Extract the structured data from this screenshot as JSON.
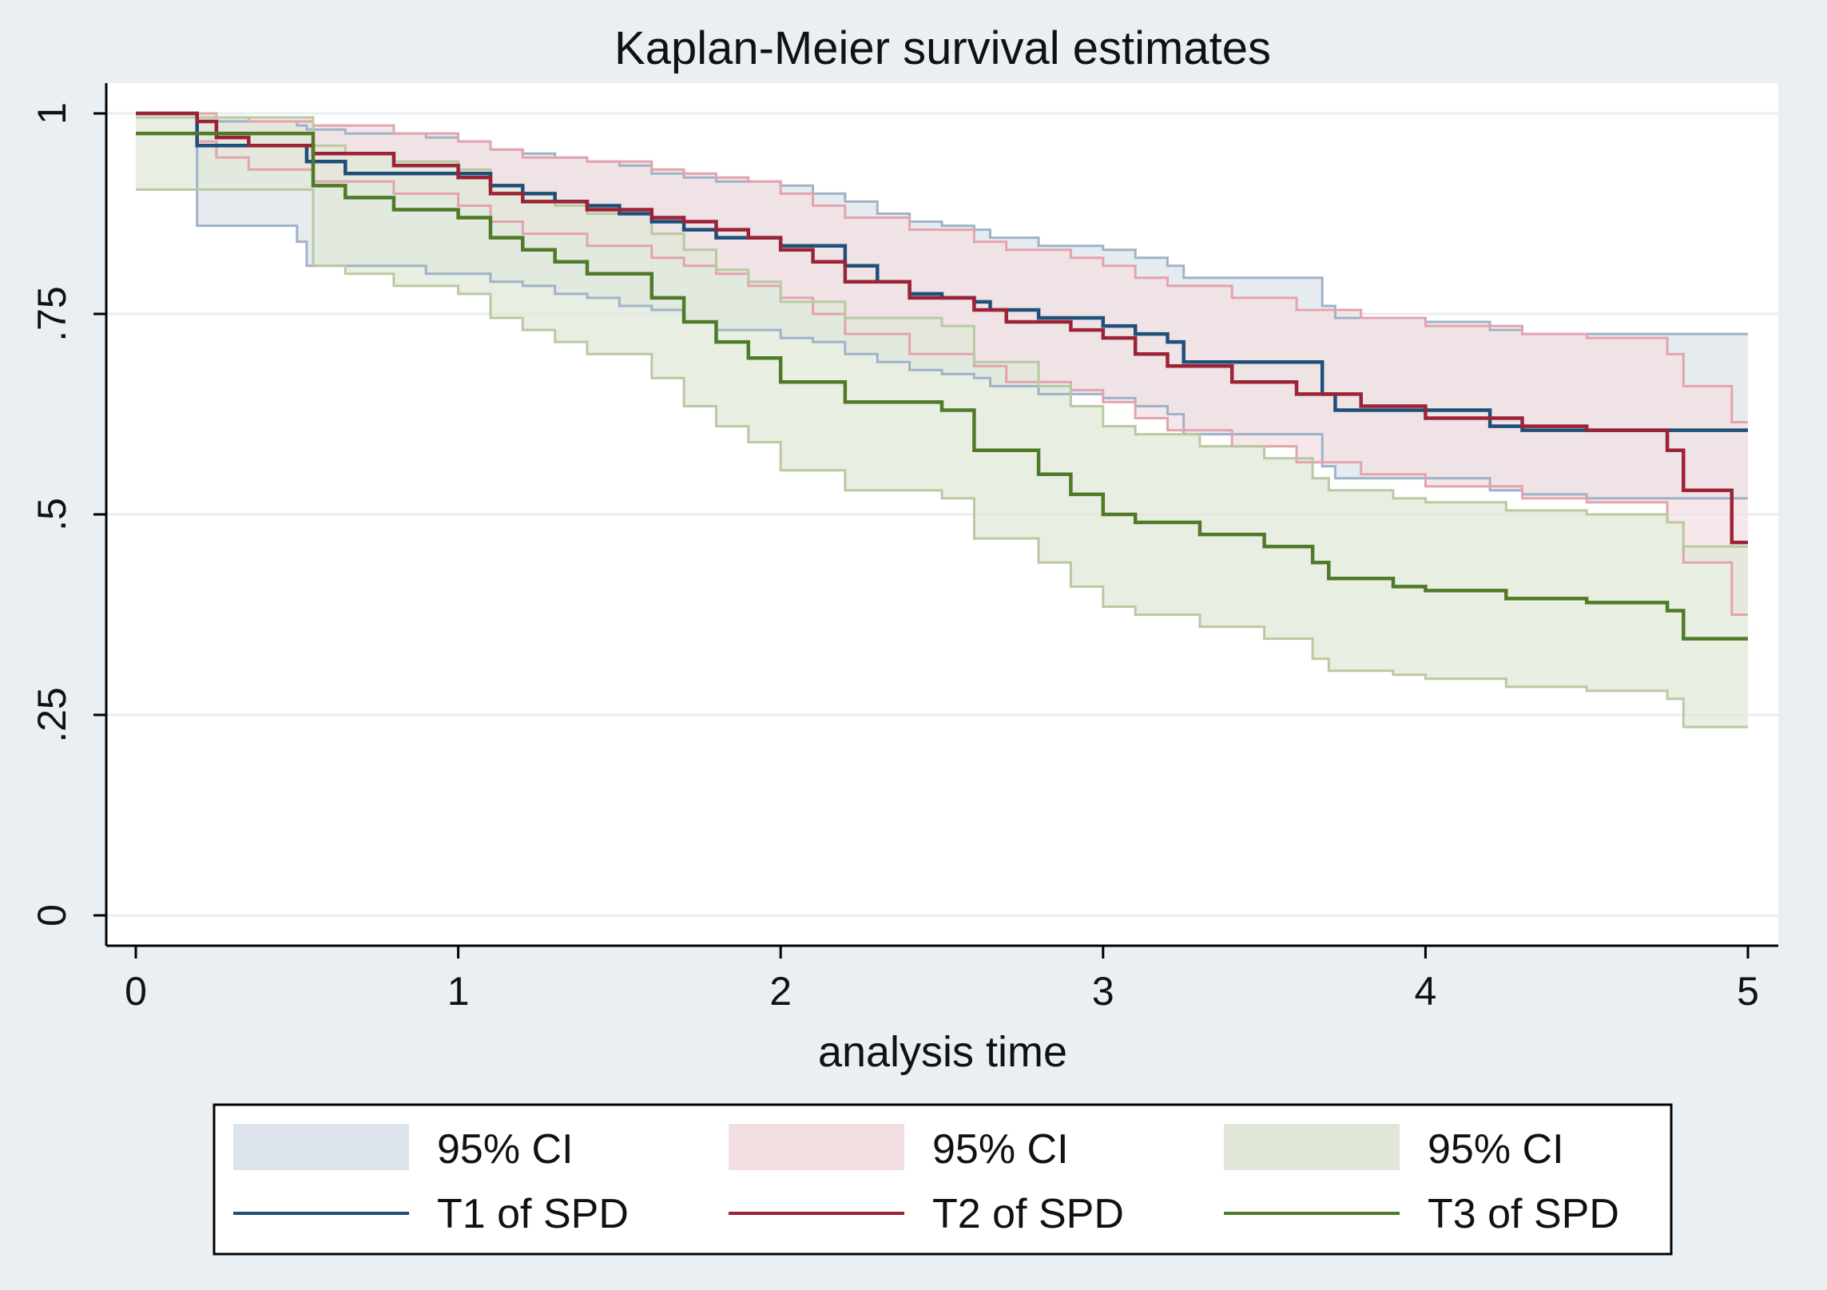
{
  "chart_data": {
    "type": "line",
    "title": "Kaplan-Meier survival estimates",
    "xlabel": "analysis time",
    "ylabel": "",
    "xlim": [
      0,
      5
    ],
    "ylim": [
      0,
      1
    ],
    "xticks": [
      0,
      1,
      2,
      3,
      4,
      5
    ],
    "xtick_labels": [
      "0",
      "1",
      "2",
      "3",
      "4",
      "5"
    ],
    "yticks": [
      0,
      0.25,
      0.5,
      0.75,
      1
    ],
    "ytick_labels": [
      "0",
      ".25",
      ".5",
      ".75",
      "1"
    ],
    "grid": true,
    "legend_position": "bottom",
    "series": [
      {
        "name": "T1 of SPD",
        "ci_label": "95% CI",
        "line_color": "#1f4e79",
        "ci_line_color": "#9fb2c8",
        "ci_fill_color": "#dde3ea",
        "x": [
          0,
          0.19,
          0.19,
          0.29,
          0.5,
          0.53,
          0.65,
          0.9,
          1.0,
          1.1,
          1.2,
          1.3,
          1.4,
          1.5,
          1.6,
          1.7,
          1.8,
          2.0,
          2.1,
          2.2,
          2.3,
          2.4,
          2.5,
          2.6,
          2.65,
          2.8,
          3.0,
          3.1,
          3.2,
          3.25,
          3.5,
          3.68,
          3.72,
          4.0,
          4.2,
          4.3,
          4.5,
          5.0
        ],
        "values": [
          1.0,
          1.0,
          0.96,
          0.96,
          0.96,
          0.94,
          0.925,
          0.925,
          0.925,
          0.91,
          0.9,
          0.89,
          0.885,
          0.875,
          0.865,
          0.855,
          0.845,
          0.835,
          0.835,
          0.81,
          0.79,
          0.775,
          0.77,
          0.765,
          0.755,
          0.745,
          0.735,
          0.725,
          0.715,
          0.69,
          0.69,
          0.65,
          0.63,
          0.63,
          0.61,
          0.605,
          0.605,
          0.605
        ],
        "ci_upper": [
          1.0,
          1.0,
          0.99,
          0.99,
          0.985,
          0.98,
          0.975,
          0.97,
          0.965,
          0.955,
          0.95,
          0.945,
          0.94,
          0.935,
          0.925,
          0.92,
          0.915,
          0.91,
          0.9,
          0.89,
          0.875,
          0.865,
          0.86,
          0.855,
          0.845,
          0.835,
          0.83,
          0.82,
          0.81,
          0.795,
          0.795,
          0.76,
          0.745,
          0.74,
          0.73,
          0.725,
          0.725,
          0.725
        ],
        "ci_lower": [
          1.0,
          1.0,
          0.86,
          0.86,
          0.84,
          0.81,
          0.81,
          0.8,
          0.8,
          0.79,
          0.785,
          0.775,
          0.77,
          0.76,
          0.755,
          0.74,
          0.73,
          0.72,
          0.715,
          0.7,
          0.69,
          0.68,
          0.675,
          0.67,
          0.66,
          0.65,
          0.645,
          0.635,
          0.625,
          0.6,
          0.6,
          0.56,
          0.545,
          0.545,
          0.53,
          0.525,
          0.52,
          0.52
        ]
      },
      {
        "name": "T2 of SPD",
        "ci_label": "95% CI",
        "line_color": "#9b2335",
        "ci_line_color": "#e4a3ad",
        "ci_fill_color": "#f3dfe2",
        "x": [
          0,
          0.19,
          0.25,
          0.35,
          0.55,
          0.8,
          1.0,
          1.1,
          1.2,
          1.4,
          1.6,
          1.7,
          1.8,
          1.9,
          2.0,
          2.1,
          2.2,
          2.4,
          2.6,
          2.7,
          2.9,
          3.0,
          3.1,
          3.2,
          3.4,
          3.6,
          3.8,
          4.0,
          4.3,
          4.5,
          4.75,
          4.8,
          4.95,
          5.0
        ],
        "values": [
          1.0,
          0.99,
          0.97,
          0.96,
          0.95,
          0.935,
          0.92,
          0.9,
          0.89,
          0.88,
          0.87,
          0.865,
          0.855,
          0.845,
          0.83,
          0.815,
          0.79,
          0.77,
          0.755,
          0.74,
          0.73,
          0.72,
          0.7,
          0.685,
          0.665,
          0.65,
          0.635,
          0.62,
          0.61,
          0.605,
          0.58,
          0.53,
          0.465,
          0.465
        ],
        "ci_upper": [
          1.0,
          1.0,
          0.995,
          0.99,
          0.985,
          0.975,
          0.965,
          0.955,
          0.945,
          0.94,
          0.93,
          0.925,
          0.92,
          0.915,
          0.9,
          0.885,
          0.87,
          0.855,
          0.84,
          0.83,
          0.82,
          0.81,
          0.795,
          0.785,
          0.77,
          0.755,
          0.745,
          0.735,
          0.725,
          0.72,
          0.7,
          0.66,
          0.615,
          0.615
        ],
        "ci_lower": [
          1.0,
          0.965,
          0.945,
          0.93,
          0.915,
          0.9,
          0.885,
          0.865,
          0.85,
          0.835,
          0.82,
          0.81,
          0.8,
          0.785,
          0.77,
          0.75,
          0.725,
          0.7,
          0.685,
          0.665,
          0.655,
          0.64,
          0.62,
          0.605,
          0.585,
          0.565,
          0.55,
          0.535,
          0.52,
          0.515,
          0.49,
          0.44,
          0.375,
          0.375
        ]
      },
      {
        "name": "T3 of SPD",
        "ci_label": "95% CI",
        "line_color": "#4f7a28",
        "ci_line_color": "#b9c9a0",
        "ci_fill_color": "#e0e7d8",
        "x": [
          0,
          0.55,
          0.65,
          0.8,
          1.0,
          1.1,
          1.2,
          1.3,
          1.4,
          1.6,
          1.7,
          1.8,
          1.9,
          2.0,
          2.2,
          2.5,
          2.6,
          2.8,
          2.9,
          3.0,
          3.1,
          3.3,
          3.5,
          3.65,
          3.7,
          3.9,
          4.0,
          4.25,
          4.5,
          4.75,
          4.8,
          5.0
        ],
        "values": [
          0.975,
          0.91,
          0.895,
          0.88,
          0.87,
          0.845,
          0.83,
          0.815,
          0.8,
          0.77,
          0.74,
          0.715,
          0.695,
          0.665,
          0.64,
          0.63,
          0.58,
          0.55,
          0.525,
          0.5,
          0.49,
          0.475,
          0.46,
          0.44,
          0.42,
          0.41,
          0.405,
          0.395,
          0.39,
          0.38,
          0.345,
          0.345
        ],
        "ci_upper": [
          0.995,
          0.96,
          0.95,
          0.94,
          0.93,
          0.91,
          0.9,
          0.885,
          0.875,
          0.85,
          0.83,
          0.805,
          0.79,
          0.765,
          0.745,
          0.735,
          0.69,
          0.66,
          0.635,
          0.61,
          0.6,
          0.585,
          0.57,
          0.545,
          0.53,
          0.52,
          0.515,
          0.505,
          0.5,
          0.49,
          0.46,
          0.46
        ],
        "ci_lower": [
          0.905,
          0.81,
          0.8,
          0.785,
          0.775,
          0.745,
          0.73,
          0.715,
          0.7,
          0.67,
          0.635,
          0.61,
          0.59,
          0.555,
          0.53,
          0.52,
          0.47,
          0.44,
          0.41,
          0.385,
          0.375,
          0.36,
          0.345,
          0.32,
          0.305,
          0.3,
          0.295,
          0.285,
          0.28,
          0.27,
          0.235,
          0.235
        ]
      }
    ]
  }
}
